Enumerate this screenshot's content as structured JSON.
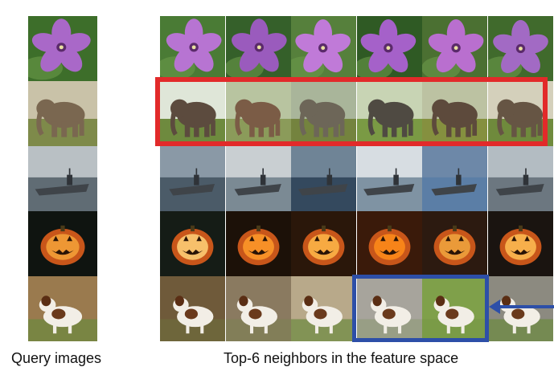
{
  "captions": {
    "query": "Query images",
    "neighbors": "Top-6 neighbors in the feature space"
  },
  "rows": [
    {
      "category": "flower-photo"
    },
    {
      "category": "elephant-photo"
    },
    {
      "category": "aircraft-carrier-photo"
    },
    {
      "category": "jack-o-lantern-photo"
    },
    {
      "category": "dog-photo"
    }
  ],
  "highlights": {
    "red_box_color": "#e22a2a",
    "blue_box_color": "#2d4fa8"
  }
}
